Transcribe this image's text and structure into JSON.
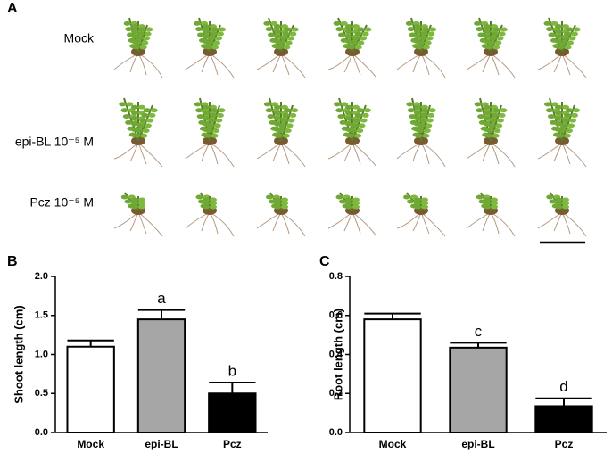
{
  "figure": {
    "panel_a_label": "A",
    "row_labels": [
      "Mock",
      "epi-BL 10⁻⁵ M",
      "Pcz 10⁻⁵ M"
    ]
  },
  "chart_data": [
    {
      "type": "bar",
      "panel_label": "B",
      "y_label": "Shoot length (cm)",
      "categories": [
        "Mock",
        "epi-BL",
        "Pcz"
      ],
      "values": [
        1.1,
        1.45,
        0.5
      ],
      "errors": [
        0.08,
        0.12,
        0.14
      ],
      "letters": [
        null,
        "a",
        "b"
      ],
      "colors": [
        "#ffffff",
        "#a6a6a6",
        "#000000"
      ],
      "ylim": [
        0,
        2
      ],
      "yticks": [
        {
          "value": 0,
          "label": "0.0"
        },
        0.5,
        {
          "value": 1,
          "label": "1.0"
        },
        1.5,
        {
          "value": 2,
          "label": "2.0"
        }
      ]
    },
    {
      "type": "bar",
      "panel_label": "C",
      "y_label": "Root length (cm)",
      "categories": [
        "Mock",
        "epi-BL",
        "Pcz"
      ],
      "values": [
        0.58,
        0.435,
        0.135
      ],
      "errors": [
        0.03,
        0.025,
        0.04
      ],
      "letters": [
        null,
        "c",
        "d"
      ],
      "colors": [
        "#ffffff",
        "#a6a6a6",
        "#000000"
      ],
      "ylim": [
        0,
        0.8
      ],
      "yticks": [
        {
          "value": 0,
          "label": "0.0"
        },
        0.2,
        0.4,
        0.6,
        0.8
      ]
    }
  ]
}
